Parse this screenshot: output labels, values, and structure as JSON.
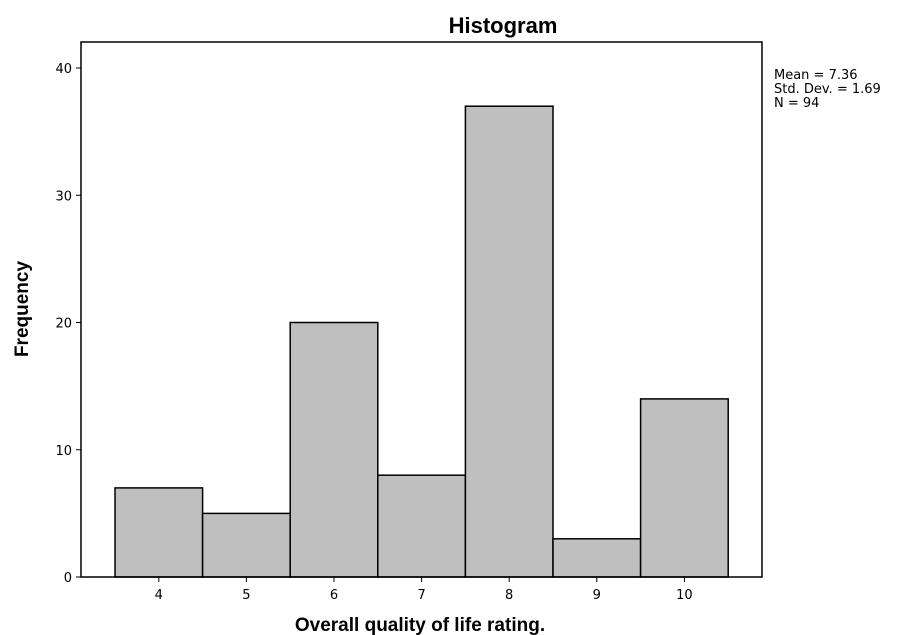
{
  "chart_data": {
    "type": "bar",
    "title": "Histogram",
    "xlabel": "Overall quality of life rating.",
    "ylabel": "Frequency",
    "categories": [
      "4",
      "5",
      "6",
      "7",
      "8",
      "9",
      "10"
    ],
    "values": [
      7,
      5,
      20,
      8,
      37,
      3,
      14
    ],
    "ylim": [
      0,
      40
    ],
    "yticks": [
      "0",
      "10",
      "20",
      "30",
      "40"
    ],
    "grid": false,
    "legend": "none",
    "bar_color": "#bfbfbf",
    "stats": {
      "mean": "Mean = 7.36",
      "std_dev": "Std. Dev. = 1.69",
      "n": "N = 94"
    }
  }
}
